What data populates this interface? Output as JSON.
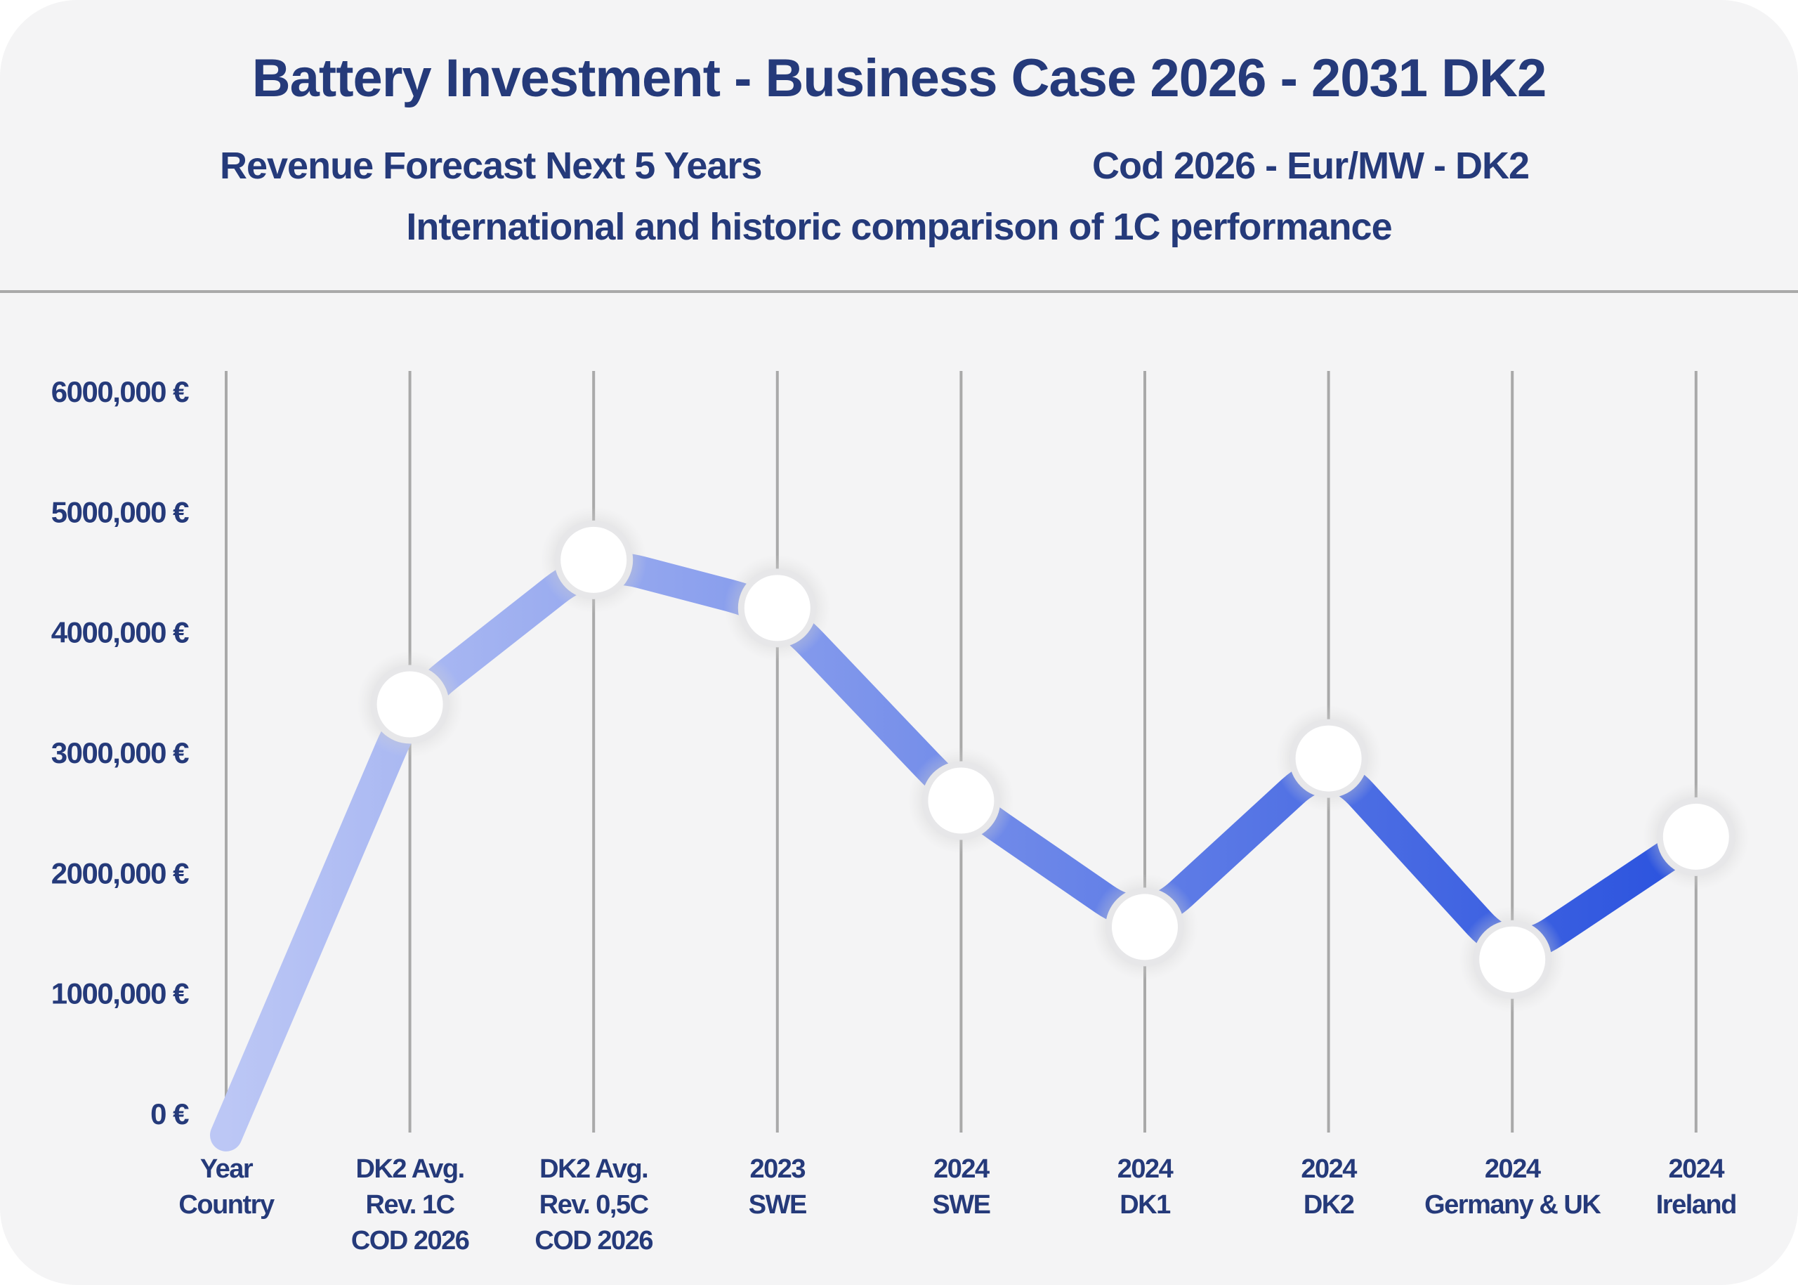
{
  "header": {
    "title": "Battery Investment - Business Case 2026 - 2031 DK2",
    "subtitle_left": "Revenue Forecast Next 5 Years",
    "subtitle_right": "Cod 2026 - Eur/MW - DK2",
    "subtitle_center": "International and historic comparison of 1C performance"
  },
  "colors": {
    "title": "#253a7a",
    "line_start": "#bcc7f5",
    "line_end": "#2a52de",
    "gridline": "#a9a9a9",
    "background": "#f4f4f5"
  },
  "chart_data": {
    "type": "line",
    "ylim": [
      0,
      6000000
    ],
    "yticks": [
      {
        "value": 6000000,
        "label": "6000,000 €"
      },
      {
        "value": 5000000,
        "label": "5000,000 €"
      },
      {
        "value": 4000000,
        "label": "4000,000 €"
      },
      {
        "value": 3000000,
        "label": "3000,000 €"
      },
      {
        "value": 2000000,
        "label": "2000,000 €"
      },
      {
        "value": 1000000,
        "label": "1000,000 €"
      },
      {
        "value": 0,
        "label": "0 €"
      }
    ],
    "categories": [
      [
        "Year",
        "Country"
      ],
      [
        "DK2 Avg.",
        "Rev. 1C",
        "COD 2026"
      ],
      [
        "DK2 Avg.",
        "Rev. 0,5C",
        "COD 2026"
      ],
      [
        "2023",
        "SWE"
      ],
      [
        "2024",
        "SWE"
      ],
      [
        "2024",
        "DK1"
      ],
      [
        "2024",
        "DK2"
      ],
      [
        "2024",
        "Germany & UK"
      ],
      [
        "2024",
        "Ireland"
      ]
    ],
    "values": [
      -180000,
      3400000,
      4600000,
      4200000,
      2600000,
      1550000,
      2950000,
      1280000,
      2300000
    ],
    "markers": [
      false,
      true,
      true,
      true,
      true,
      true,
      true,
      true,
      true
    ],
    "grid": "vertical"
  }
}
